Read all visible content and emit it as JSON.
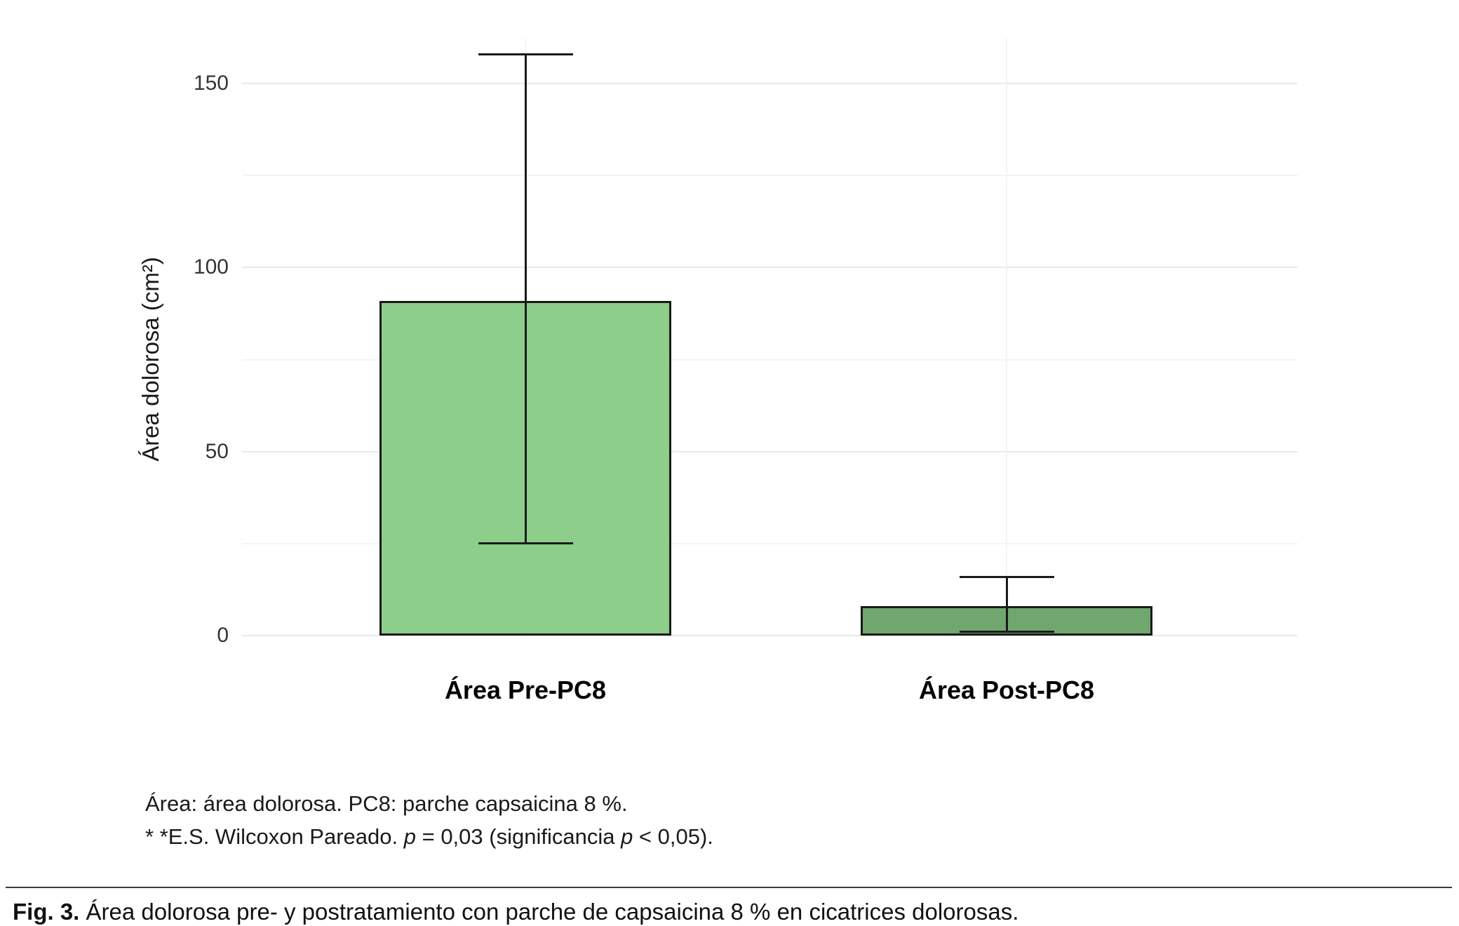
{
  "chart_data": {
    "type": "bar",
    "title": "",
    "xlabel": "",
    "ylabel": "Área dolorosa (cm²)",
    "categories": [
      "Área Pre-PC8",
      "Área Post-PC8"
    ],
    "values": [
      91,
      8
    ],
    "error_bars": {
      "low": [
        25,
        1
      ],
      "high": [
        158,
        16
      ]
    },
    "bar_colors": [
      "#8cce8a",
      "#6fa76f"
    ],
    "bar_border_color": "#1a1a1a",
    "error_bar_color": "#1a1a1a",
    "ylim": [
      0,
      163
    ],
    "yticks": [
      0,
      50,
      100,
      150
    ],
    "minor_ticks": [
      25,
      75,
      125
    ],
    "grid": true,
    "legend": "none",
    "background": "#ffffff",
    "major_grid_color": "#e9e9e9",
    "minor_grid_color": "#f4f4f4"
  },
  "footnotes": {
    "line1": "Área: área dolorosa. PC8: parche capsaicina 8 %.",
    "line2": {
      "pre": "* *E.S. Wilcoxon Pareado. ",
      "p1": "p",
      "eq": " = 0,03 (significancia ",
      "p2": "p",
      "post": " < 0,05)."
    }
  },
  "caption": {
    "label": "Fig. 3.",
    "text": " Área dolorosa pre- y postratamiento con parche de capsaicina 8 % en cicatrices dolorosas."
  }
}
